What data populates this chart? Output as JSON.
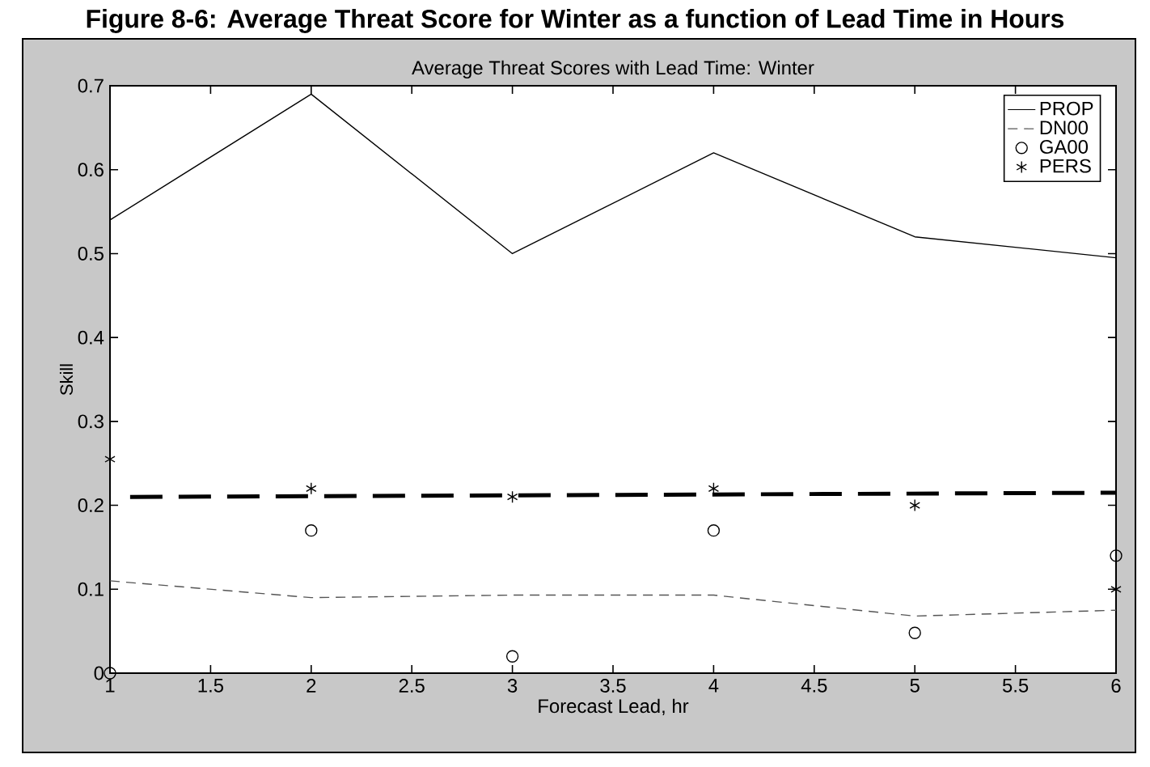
{
  "chart_data": {
    "type": "line",
    "title": "Figure 8-6: Average Threat Score for Winter as a function of Lead Time in Hours",
    "subtitle": "Average Threat Scores with Lead Time: Winter",
    "xlabel": "Forecast Lead, hr",
    "ylabel": "Skill",
    "x": [
      1,
      2,
      3,
      4,
      5,
      6
    ],
    "series": [
      {
        "name": "PROP",
        "color": "#000000",
        "line_style": "solid",
        "values": [
          0.54,
          0.69,
          0.5,
          0.62,
          0.52,
          0.495
        ]
      },
      {
        "name": "DN00",
        "color": "#555555",
        "line_style": "dashed",
        "values": [
          0.11,
          0.09,
          0.093,
          0.093,
          0.068,
          0.075
        ]
      },
      {
        "name": "GA00",
        "type": "scatter",
        "color": "#000000",
        "marker": "circle",
        "values": [
          0,
          0.17,
          0.02,
          0.17,
          0.048,
          0.14
        ]
      },
      {
        "name": "PERS",
        "type": "scatter",
        "color": "#000000",
        "marker": "cross",
        "values": [
          0.255,
          0.22,
          0.21,
          0.22,
          0.2,
          0.1
        ]
      },
      {
        "color": "#000000",
        "line_style": "dashed",
        "x": [
          1.1,
          6
        ],
        "values": [
          0.21,
          0.215
        ]
      }
    ],
    "xlim": [
      1,
      6
    ],
    "ylim": [
      0,
      0.7
    ],
    "xticks": [
      1,
      1.5,
      2,
      2.5,
      3,
      3.5,
      4,
      4.5,
      5,
      5.5,
      6
    ],
    "yticks": [
      0,
      0.1,
      0.2,
      0.3,
      0.4,
      0.5,
      0.6,
      0.7
    ],
    "legend": "top right",
    "grid": false
  }
}
